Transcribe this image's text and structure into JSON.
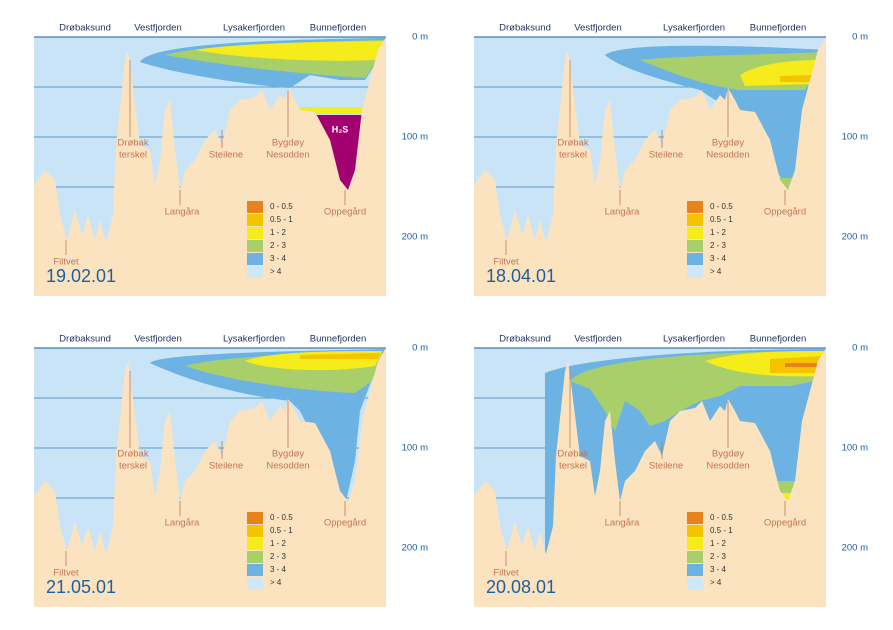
{
  "panels": [
    {
      "date": "19.02.01",
      "regions": [
        "Drøbaksund",
        "Vestfjorden",
        "Lysakerfjorden",
        "Bunnefjorden"
      ],
      "places": [
        {
          "lines": [
            "Drøbak",
            "terskel"
          ]
        },
        {
          "lines": [
            "Steilene"
          ]
        },
        {
          "lines": [
            "Langåra"
          ]
        },
        {
          "lines": [
            "Bygdøy",
            "Nesodden"
          ]
        },
        {
          "lines": [
            "Oppegård"
          ]
        },
        {
          "lines": [
            "Filtvet"
          ]
        }
      ],
      "depths": [
        "0 m",
        "100 m",
        "200 m"
      ],
      "legend": [
        "0 - 0.5",
        "0.5 - 1",
        "1 - 2",
        "2 - 3",
        "3 - 4",
        "> 4"
      ],
      "annotation": "H₂S"
    },
    {
      "date": "18.04.01",
      "regions": [
        "Drøbaksund",
        "Vestfjorden",
        "Lysakerfjorden",
        "Bunnefjorden"
      ],
      "places": [
        {
          "lines": [
            "Drøbak",
            "terskel"
          ]
        },
        {
          "lines": [
            "Steilene"
          ]
        },
        {
          "lines": [
            "Langåra"
          ]
        },
        {
          "lines": [
            "Bygdøy",
            "Nesodden"
          ]
        },
        {
          "lines": [
            "Oppegård"
          ]
        },
        {
          "lines": [
            "Filtvet"
          ]
        }
      ],
      "depths": [
        "0 m",
        "100 m",
        "200 m"
      ],
      "legend": [
        "0 - 0.5",
        "0.5 - 1",
        "1 - 2",
        "2 - 3",
        "3 - 4",
        "> 4"
      ]
    },
    {
      "date": "21.05.01",
      "regions": [
        "Drøbaksund",
        "Vestfjorden",
        "Lysakerfjorden",
        "Bunnefjorden"
      ],
      "places": [
        {
          "lines": [
            "Drøbak",
            "terskel"
          ]
        },
        {
          "lines": [
            "Steilene"
          ]
        },
        {
          "lines": [
            "Langåra"
          ]
        },
        {
          "lines": [
            "Bygdøy",
            "Nesodden"
          ]
        },
        {
          "lines": [
            "Oppegård"
          ]
        },
        {
          "lines": [
            "Filtvet"
          ]
        }
      ],
      "depths": [
        "0 m",
        "100 m",
        "200 m"
      ],
      "legend": [
        "0 - 0.5",
        "0.5 - 1",
        "1 - 2",
        "2 - 3",
        "3 - 4",
        "> 4"
      ]
    },
    {
      "date": "20.08.01",
      "regions": [
        "Drøbaksund",
        "Vestfjorden",
        "Lysakerfjorden",
        "Bunnefjorden"
      ],
      "places": [
        {
          "lines": [
            "Drøbak",
            "terskel"
          ]
        },
        {
          "lines": [
            "Steilene"
          ]
        },
        {
          "lines": [
            "Langåra"
          ]
        },
        {
          "lines": [
            "Bygdøy",
            "Nesodden"
          ]
        },
        {
          "lines": [
            "Oppegård"
          ]
        },
        {
          "lines": [
            "Filtvet"
          ]
        }
      ],
      "depths": [
        "0 m",
        "100 m",
        "200 m"
      ],
      "legend": [
        "0 - 0.5",
        "0.5 - 1",
        "1 - 2",
        "2 - 3",
        "3 - 4",
        "> 4"
      ]
    }
  ]
}
